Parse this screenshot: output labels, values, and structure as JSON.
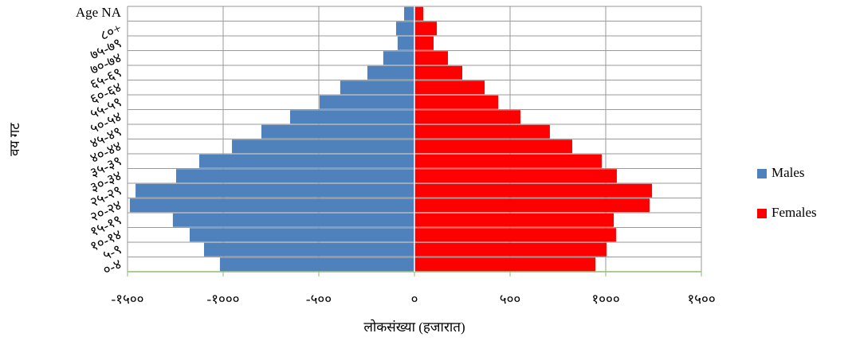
{
  "chart_data": {
    "type": "pyramid",
    "categories": [
      "०-४",
      "५-९",
      "१०-१४",
      "१५-१९",
      "२०-२४",
      "२५-२९",
      "३०-३४",
      "३५-३९",
      "४०-४४",
      "४५-४९",
      "५०-५४",
      "५५-५९",
      "६०-६४",
      "६५-६९",
      "७०-७४",
      "७५-७९",
      "८०+",
      "Age NA"
    ],
    "series": [
      {
        "name": "Males",
        "color": "#4f81bd",
        "values": [
          -1017,
          -1100,
          -1175,
          -1263,
          -1488,
          -1458,
          -1246,
          -1125,
          -954,
          -800,
          -650,
          -496,
          -388,
          -246,
          -163,
          -88,
          -96,
          -54
        ]
      },
      {
        "name": "Females",
        "color": "#ff0000",
        "values": [
          946,
          1004,
          1054,
          1042,
          1229,
          1242,
          1058,
          979,
          825,
          708,
          554,
          438,
          367,
          250,
          175,
          100,
          117,
          46
        ]
      }
    ],
    "xlim": [
      -1500,
      1500
    ],
    "xticks": [
      {
        "value": -1500,
        "label": "-१५००"
      },
      {
        "value": -1000,
        "label": "-१०००"
      },
      {
        "value": -500,
        "label": "-५००"
      },
      {
        "value": 0,
        "label": "०"
      },
      {
        "value": 500,
        "label": "५००"
      },
      {
        "value": 1000,
        "label": "१०००"
      },
      {
        "value": 1500,
        "label": "१५००"
      }
    ],
    "xlabel": "लोकसंख्या (हजारात)",
    "ylabel": "वय गट",
    "grid": true,
    "legend": "right"
  }
}
